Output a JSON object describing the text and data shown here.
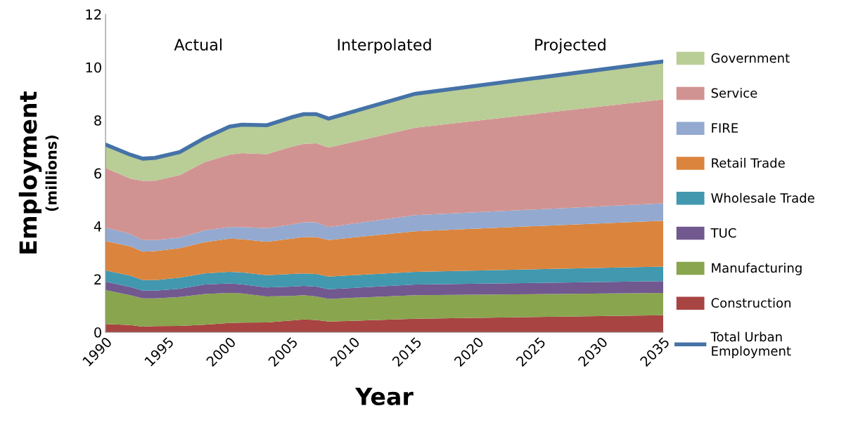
{
  "chart_data": {
    "type": "area",
    "stacked": true,
    "xlabel": "Year",
    "ylabel": "Employment\n(millions)",
    "x": [
      1990,
      1992,
      1993,
      1994,
      1996,
      1998,
      2000,
      2001,
      2003,
      2005,
      2006,
      2007,
      2008,
      2015,
      2035
    ],
    "xlim": [
      1990,
      2035
    ],
    "xticks": [
      1990,
      1995,
      2000,
      2005,
      2010,
      2015,
      2020,
      2025,
      2030,
      2035
    ],
    "ylim": [
      0,
      12
    ],
    "yticks": [
      0,
      2,
      4,
      6,
      8,
      10,
      12
    ],
    "grid": false,
    "legend": "right",
    "series": [
      {
        "name": "Construction",
        "color": "#a84442",
        "values": [
          0.31,
          0.27,
          0.21,
          0.23,
          0.24,
          0.28,
          0.35,
          0.36,
          0.37,
          0.44,
          0.48,
          0.46,
          0.4,
          0.51,
          0.64
        ]
      },
      {
        "name": "Manufacturing",
        "color": "#89a54e",
        "values": [
          1.28,
          1.13,
          1.07,
          1.05,
          1.09,
          1.16,
          1.13,
          1.1,
          0.98,
          0.93,
          0.92,
          0.89,
          0.86,
          0.89,
          0.84
        ]
      },
      {
        "name": "TUC",
        "color": "#71588f",
        "values": [
          0.32,
          0.31,
          0.29,
          0.29,
          0.31,
          0.36,
          0.36,
          0.35,
          0.34,
          0.35,
          0.35,
          0.37,
          0.36,
          0.4,
          0.45
        ]
      },
      {
        "name": "Wholesale Trade",
        "color": "#4198af",
        "values": [
          0.42,
          0.42,
          0.4,
          0.4,
          0.42,
          0.42,
          0.44,
          0.45,
          0.46,
          0.48,
          0.47,
          0.48,
          0.48,
          0.48,
          0.55
        ]
      },
      {
        "name": "Retail Trade",
        "color": "#db843d",
        "values": [
          1.11,
          1.11,
          1.07,
          1.09,
          1.11,
          1.18,
          1.25,
          1.25,
          1.26,
          1.33,
          1.37,
          1.39,
          1.38,
          1.53,
          1.73
        ]
      },
      {
        "name": "FIRE",
        "color": "#93a9cf",
        "values": [
          0.51,
          0.47,
          0.44,
          0.42,
          0.4,
          0.44,
          0.44,
          0.46,
          0.52,
          0.53,
          0.56,
          0.56,
          0.49,
          0.61,
          0.65
        ]
      },
      {
        "name": "Service",
        "color": "#d19392",
        "values": [
          2.25,
          2.09,
          2.23,
          2.24,
          2.36,
          2.58,
          2.73,
          2.79,
          2.79,
          2.94,
          2.96,
          2.98,
          3.0,
          3.3,
          3.93
        ]
      },
      {
        "name": "Government",
        "color": "#b9cd96",
        "values": [
          0.85,
          0.88,
          0.81,
          0.83,
          0.84,
          0.89,
          1.05,
          1.06,
          1.08,
          1.11,
          1.11,
          1.09,
          1.07,
          1.28,
          1.43
        ]
      },
      {
        "name": "Total Urban Employment",
        "type": "line",
        "color": "#4572a7",
        "values": [
          7.08,
          6.7,
          6.55,
          6.58,
          6.8,
          7.33,
          7.76,
          7.83,
          7.81,
          8.11,
          8.23,
          8.23,
          8.06,
          9.0,
          10.22
        ]
      }
    ],
    "annotations": [
      "Actual",
      "Interpolated",
      "Projected"
    ]
  }
}
